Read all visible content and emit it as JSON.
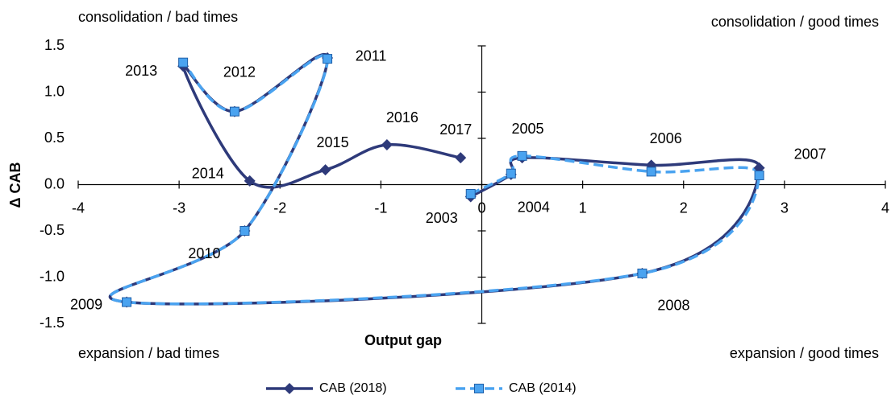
{
  "chart_data": {
    "type": "scatter-smooth",
    "x_label": "Output gap",
    "y_label": "Δ CAB",
    "annotations": [
      "consolidation / bad times",
      "consolidation / good times",
      "expansion / bad times",
      "expansion / good times"
    ],
    "point_labels": [
      "2003",
      "2004",
      "2005",
      "2006",
      "2007",
      "2008",
      "2009",
      "2010",
      "2011",
      "2012",
      "2013",
      "2014",
      "2015",
      "2016",
      "2017"
    ],
    "series": [
      {
        "name": "CAB (2018)",
        "color": "#2e3a7a",
        "marker": "diamond",
        "dash": false,
        "x": [
          -0.11,
          0.29,
          0.4,
          1.68,
          2.75,
          1.59,
          -3.52,
          -2.35,
          -1.53,
          -2.45,
          -2.96,
          -2.3,
          -1.55,
          -0.94,
          -0.21
        ],
        "y": [
          -0.13,
          0.11,
          0.29,
          0.21,
          0.18,
          -0.96,
          -1.27,
          -0.5,
          1.37,
          0.79,
          1.28,
          0.04,
          0.16,
          0.43,
          0.29
        ]
      },
      {
        "name": "CAB (2014)",
        "color": "#4aa3f0",
        "marker": "square",
        "dash": true,
        "x": [
          -0.11,
          0.29,
          0.4,
          1.68,
          2.75,
          1.59,
          -3.52,
          -2.35,
          -1.53,
          -2.45,
          -2.96
        ],
        "y": [
          -0.1,
          0.12,
          0.31,
          0.14,
          0.1,
          -0.96,
          -1.27,
          -0.5,
          1.36,
          0.79,
          1.32
        ]
      }
    ],
    "xlim": [
      -4,
      4
    ],
    "ylim": [
      -1.5,
      1.5
    ],
    "xticks": [
      -4,
      -3,
      -2,
      -1,
      0,
      1,
      2,
      3,
      4
    ],
    "yticks": [
      -1.5,
      {
        "value": -1,
        "label": "-1.0"
      },
      -0.5,
      {
        "value": 0,
        "label": "0.0"
      },
      0.5,
      {
        "value": 1,
        "label": "1.0"
      },
      1.5
    ]
  }
}
